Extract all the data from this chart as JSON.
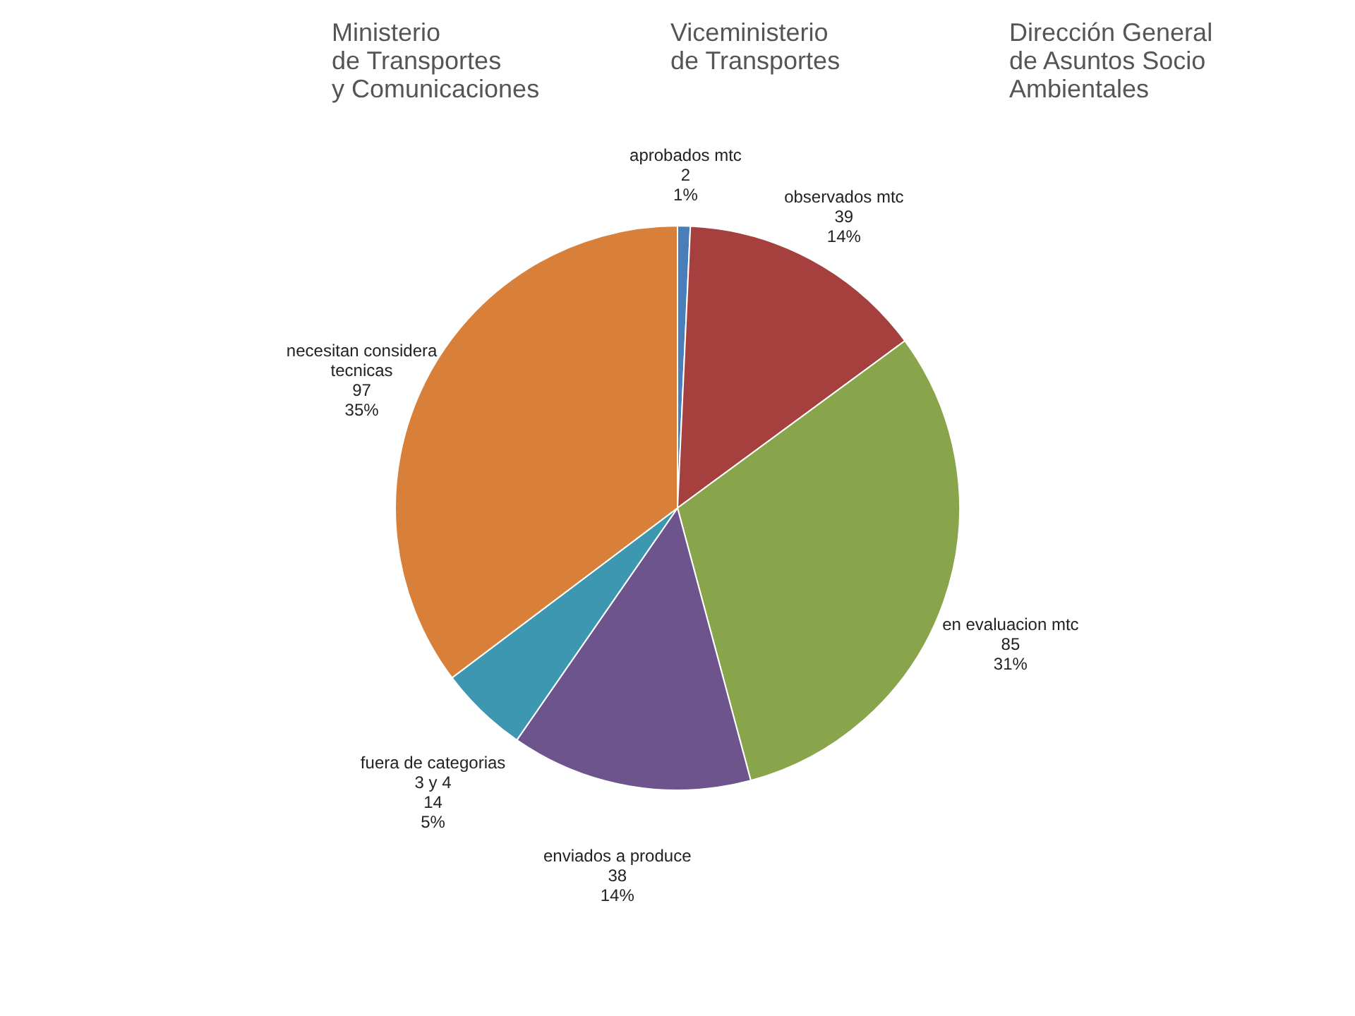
{
  "chart_data": {
    "type": "pie",
    "categories": [
      "aprobados mtc",
      "observados mtc",
      "en evaluacion mtc",
      "enviados a produce",
      "fuera de categorias\n3 y 4",
      "necesitan considera\ntecnicas"
    ],
    "values": [
      2,
      39,
      85,
      38,
      14,
      97
    ],
    "colors": [
      "#4a7ebb",
      "#a5403f",
      "#88a54c",
      "#6e548d",
      "#3d97b0",
      "#d8803a"
    ],
    "value_labels": [
      "2\n1%",
      "39\n14%",
      "85\n31%",
      "38\n14%",
      "14\n5%",
      "97\n35%"
    ],
    "annotations": [
      "Ministerio\nde Transportes\ny Comunicaciones",
      "Viceministerio\nde Transportes",
      "Dirección General\nde Asuntos Socio\nAmbientales"
    ]
  }
}
